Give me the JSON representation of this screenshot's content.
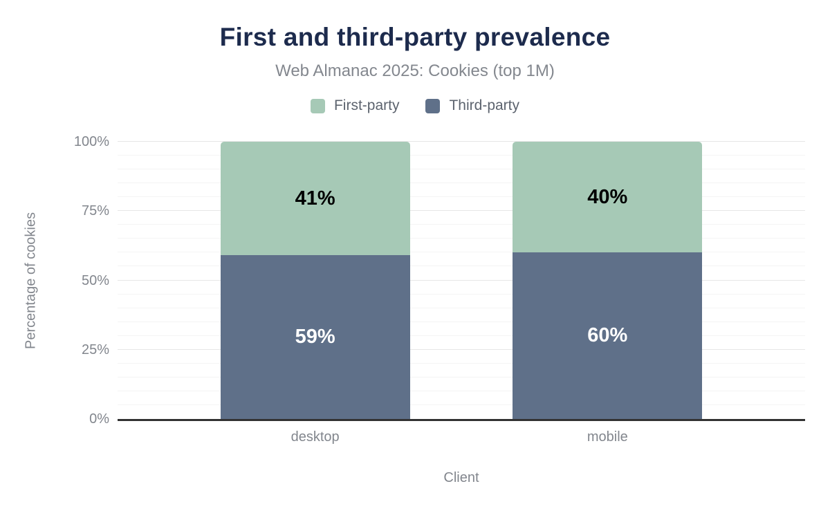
{
  "header": {
    "title": "First and third-party prevalence",
    "subtitle": "Web Almanac 2025: Cookies (top 1M)"
  },
  "legend": {
    "position": "top",
    "items": [
      {
        "label": "First-party",
        "color": "#a6c9b6"
      },
      {
        "label": "Third-party",
        "color": "#5f7089"
      }
    ]
  },
  "chart_data": {
    "type": "bar",
    "stacked": true,
    "title": "First and third-party prevalence",
    "subtitle": "Web Almanac 2025: Cookies (top 1M)",
    "xlabel": "Client",
    "ylabel": "Percentage of cookies",
    "categories": [
      "desktop",
      "mobile"
    ],
    "series": [
      {
        "name": "Third-party",
        "values": [
          59,
          60
        ],
        "color": "#5f7089",
        "label_color": "#ffffff"
      },
      {
        "name": "First-party",
        "values": [
          41,
          40
        ],
        "color": "#a6c9b6",
        "label_color": "#000000"
      }
    ],
    "value_labels": {
      "desktop": {
        "Third-party": "59%",
        "First-party": "41%"
      },
      "mobile": {
        "Third-party": "60%",
        "First-party": "40%"
      }
    },
    "ylim": [
      0,
      100
    ],
    "yticks": [
      {
        "value": 0,
        "label": "0%"
      },
      {
        "value": 25,
        "label": "25%"
      },
      {
        "value": 50,
        "label": "50%"
      },
      {
        "value": 75,
        "label": "75%"
      },
      {
        "value": 100,
        "label": "100%"
      }
    ],
    "minor_grid_step": 5,
    "major_grid_step": 25,
    "grid": true,
    "legend_position": "top"
  },
  "colors": {
    "background": "#ffffff",
    "title": "#1d2b4d",
    "subtitle": "#83878e",
    "axis_text": "#82868d",
    "legend_text": "#5c636e",
    "axis_line": "#323232",
    "grid_major": "#e6e6e6",
    "grid_minor": "#f4f4f4"
  }
}
